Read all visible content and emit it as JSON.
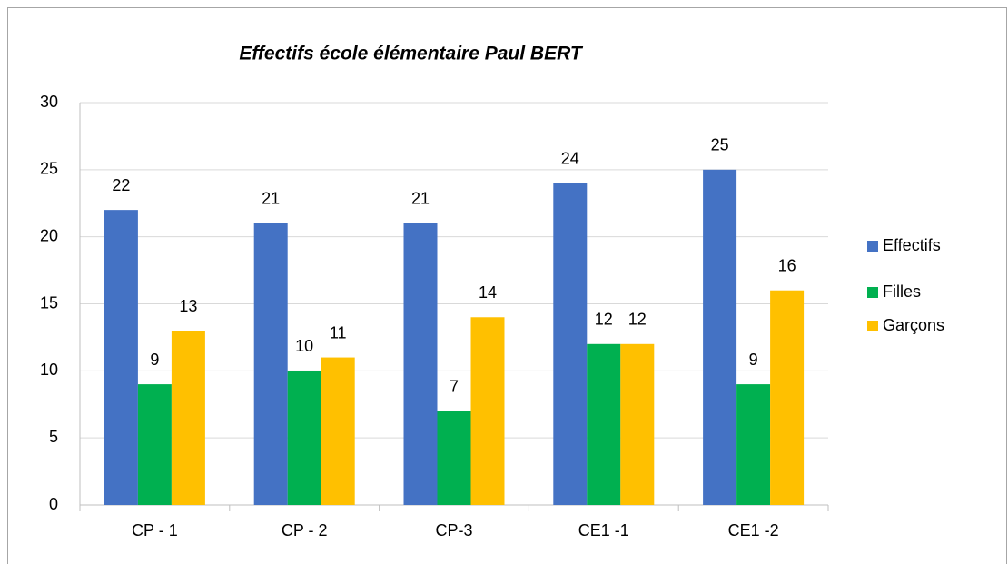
{
  "chart_data": {
    "type": "bar",
    "title": "Effectifs école élémentaire Paul BERT",
    "categories": [
      "CP - 1",
      "CP - 2",
      "CP-3",
      "CE1 -1",
      "CE1 -2"
    ],
    "series": [
      {
        "name": "Effectifs",
        "color": "#4472c4",
        "values": [
          22,
          21,
          21,
          24,
          25
        ]
      },
      {
        "name": "Filles",
        "color": "#00b050",
        "values": [
          9,
          10,
          7,
          12,
          9
        ]
      },
      {
        "name": "Garçons",
        "color": "#ffc000",
        "values": [
          13,
          11,
          14,
          12,
          16
        ]
      }
    ],
    "ylim": [
      0,
      30
    ],
    "yticks": [
      0,
      5,
      10,
      15,
      20,
      25,
      30
    ],
    "grid": true,
    "legend": "right"
  }
}
